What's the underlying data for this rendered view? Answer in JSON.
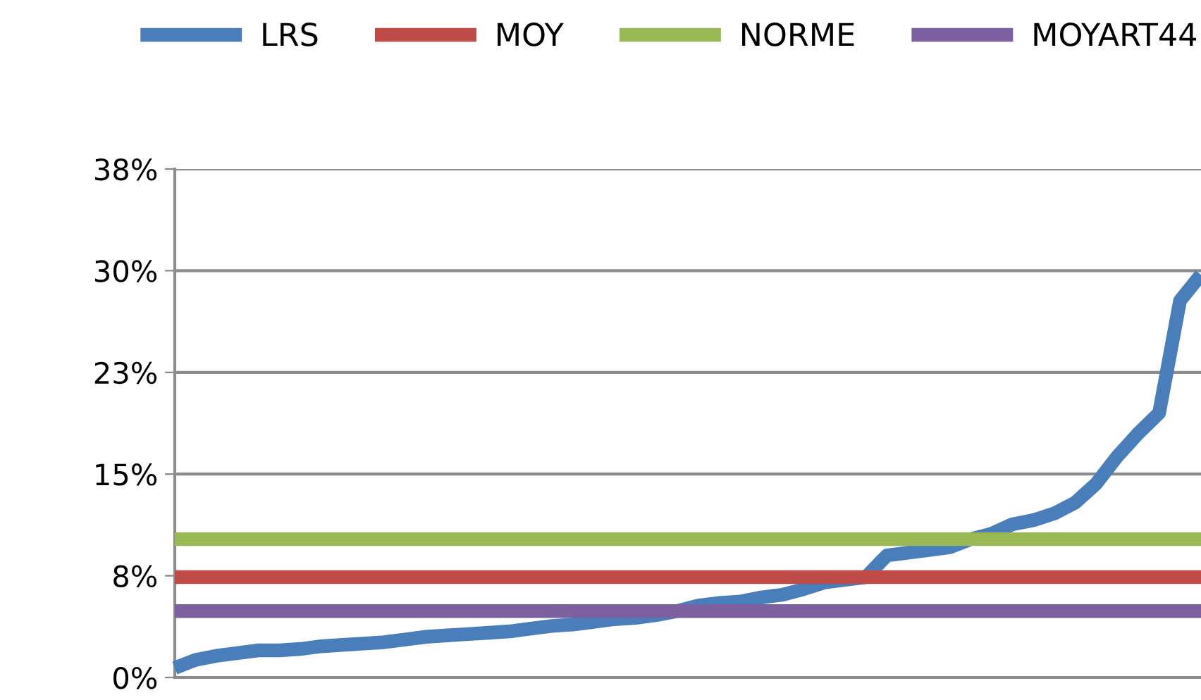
{
  "chart_data": {
    "type": "line",
    "categories": [
      null,
      null,
      null,
      null,
      null,
      null,
      null,
      null,
      null,
      null,
      null,
      null,
      null,
      null,
      null,
      null,
      null,
      null,
      null,
      null,
      null,
      null,
      null,
      null,
      null,
      null,
      null,
      null,
      null,
      null,
      null,
      null,
      null,
      null,
      null,
      null,
      null,
      null,
      null,
      null,
      null,
      null,
      null,
      null,
      null,
      null,
      null,
      null,
      null,
      null
    ],
    "series": [
      {
        "name": "LRS",
        "color": "#4a7ebb",
        "values": [
          0.7,
          1.3,
          1.6,
          1.8,
          2.0,
          2.0,
          2.1,
          2.3,
          2.4,
          2.5,
          2.6,
          2.8,
          3.0,
          3.1,
          3.2,
          3.3,
          3.4,
          3.6,
          3.8,
          3.9,
          4.1,
          4.3,
          4.4,
          4.6,
          4.9,
          5.3,
          5.5,
          5.6,
          5.9,
          6.1,
          6.5,
          7.0,
          7.2,
          7.4,
          9.0,
          9.2,
          9.4,
          9.6,
          10.2,
          10.6,
          11.3,
          11.6,
          12.1,
          12.9,
          14.3,
          16.3,
          18.0,
          19.5,
          27.8,
          29.7
        ]
      },
      {
        "name": "MOY",
        "color": "#be4b48",
        "values": [
          7.4,
          7.4,
          7.4,
          7.4,
          7.4,
          7.4,
          7.4,
          7.4,
          7.4,
          7.4,
          7.4,
          7.4,
          7.4,
          7.4,
          7.4,
          7.4,
          7.4,
          7.4,
          7.4,
          7.4,
          7.4,
          7.4,
          7.4,
          7.4,
          7.4,
          7.4,
          7.4,
          7.4,
          7.4,
          7.4,
          7.4,
          7.4,
          7.4,
          7.4,
          7.4,
          7.4,
          7.4,
          7.4,
          7.4,
          7.4,
          7.4,
          7.4,
          7.4,
          7.4,
          7.4,
          7.4,
          7.4,
          7.4,
          7.4,
          7.4
        ]
      },
      {
        "name": "NORME",
        "color": "#98b954",
        "values": [
          10.2,
          10.2,
          10.2,
          10.2,
          10.2,
          10.2,
          10.2,
          10.2,
          10.2,
          10.2,
          10.2,
          10.2,
          10.2,
          10.2,
          10.2,
          10.2,
          10.2,
          10.2,
          10.2,
          10.2,
          10.2,
          10.2,
          10.2,
          10.2,
          10.2,
          10.2,
          10.2,
          10.2,
          10.2,
          10.2,
          10.2,
          10.2,
          10.2,
          10.2,
          10.2,
          10.2,
          10.2,
          10.2,
          10.2,
          10.2,
          10.2,
          10.2,
          10.2,
          10.2,
          10.2,
          10.2,
          10.2,
          10.2,
          10.2,
          10.2
        ]
      },
      {
        "name": "MOYART44",
        "color": "#7d60a0",
        "values": [
          4.9,
          4.9,
          4.9,
          4.9,
          4.9,
          4.9,
          4.9,
          4.9,
          4.9,
          4.9,
          4.9,
          4.9,
          4.9,
          4.9,
          4.9,
          4.9,
          4.9,
          4.9,
          4.9,
          4.9,
          4.9,
          4.9,
          4.9,
          4.9,
          4.9,
          4.9,
          4.9,
          4.9,
          4.9,
          4.9,
          4.9,
          4.9,
          4.9,
          4.9,
          4.9,
          4.9,
          4.9,
          4.9,
          4.9,
          4.9,
          4.9,
          4.9,
          4.9,
          4.9,
          4.9,
          4.9,
          4.9,
          4.9,
          4.9,
          4.9
        ]
      }
    ],
    "ylim": [
      0,
      37.5
    ],
    "yticks": [
      {
        "value": 0,
        "label": "0%"
      },
      {
        "value": 7.5,
        "label": "8%"
      },
      {
        "value": 15,
        "label": "15%"
      },
      {
        "value": 22.5,
        "label": "23%"
      },
      {
        "value": 30,
        "label": "30%"
      },
      {
        "value": 37.5,
        "label": "38%"
      }
    ],
    "grid": "y",
    "legend": "top",
    "marker": "none",
    "line_style": "solid"
  }
}
